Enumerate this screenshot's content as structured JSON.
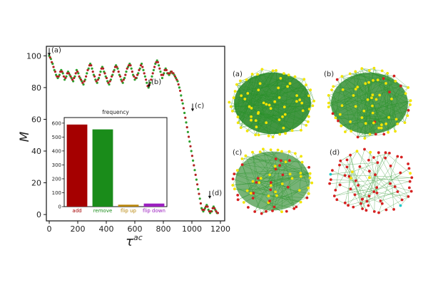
{
  "chart_data": [
    {
      "type": "scatter",
      "xlabel": "τ",
      "xlabel_sup": "ac",
      "ylabel": "M",
      "xlim": [
        -20,
        1230
      ],
      "ylim": [
        -4,
        106
      ],
      "xticks": [
        0,
        200,
        400,
        600,
        800,
        1000,
        1200
      ],
      "yticks": [
        0,
        20,
        40,
        60,
        80,
        100
      ],
      "grid": false,
      "series": [
        {
          "color": "#2ca02c",
          "x": [
            0,
            12,
            24,
            36,
            48,
            60,
            72,
            84,
            96,
            108,
            120,
            132,
            144,
            156,
            168,
            180,
            192,
            204,
            216,
            228,
            240,
            252,
            264,
            276,
            288,
            300,
            312,
            324,
            336,
            348,
            360,
            372,
            384,
            396,
            408,
            420,
            432,
            444,
            456,
            468,
            480,
            492,
            504,
            516,
            528,
            540,
            552,
            564,
            576,
            588,
            600,
            612,
            624,
            636,
            648,
            660,
            672,
            684,
            696,
            708,
            720,
            732,
            744,
            756,
            768,
            780,
            792,
            804,
            816,
            828,
            840,
            852,
            864,
            876,
            888,
            900,
            912,
            924,
            936,
            948,
            960,
            972,
            984,
            996,
            1008,
            1020,
            1032,
            1044,
            1056,
            1068,
            1080,
            1092,
            1104,
            1116,
            1128,
            1140,
            1152,
            1164,
            1176
          ],
          "y": [
            100,
            98,
            95,
            91,
            88,
            86,
            88,
            91,
            89,
            85,
            87,
            90,
            88,
            86,
            84,
            87,
            91,
            89,
            86,
            84,
            82,
            85,
            89,
            92,
            95,
            92,
            88,
            85,
            83,
            86,
            90,
            93,
            90,
            87,
            84,
            82,
            85,
            88,
            91,
            94,
            92,
            88,
            85,
            83,
            86,
            90,
            93,
            95,
            92,
            88,
            85,
            86,
            89,
            92,
            95,
            91,
            87,
            83,
            80,
            83,
            87,
            91,
            95,
            97,
            94,
            90,
            86,
            89,
            92,
            89,
            88,
            90,
            89,
            88,
            86,
            84,
            80,
            75,
            70,
            64,
            58,
            52,
            46,
            40,
            34,
            28,
            22,
            16,
            10,
            4,
            2,
            4,
            6,
            3,
            1,
            2,
            5,
            3,
            1
          ]
        },
        {
          "color": "#b22222",
          "x": [
            6,
            18,
            30,
            42,
            54,
            66,
            78,
            90,
            102,
            114,
            126,
            138,
            150,
            162,
            174,
            186,
            198,
            210,
            222,
            234,
            246,
            258,
            270,
            282,
            294,
            306,
            318,
            330,
            342,
            354,
            366,
            378,
            390,
            402,
            414,
            426,
            438,
            450,
            462,
            474,
            486,
            498,
            510,
            522,
            534,
            546,
            558,
            570,
            582,
            594,
            606,
            618,
            630,
            642,
            654,
            666,
            678,
            690,
            702,
            714,
            726,
            738,
            750,
            762,
            774,
            786,
            798,
            810,
            822,
            834,
            846,
            858,
            870,
            882,
            894,
            906,
            918,
            930,
            942,
            954,
            966,
            978,
            990,
            1002,
            1014,
            1026,
            1038,
            1050,
            1062,
            1074,
            1086,
            1098,
            1110,
            1122,
            1134,
            1146,
            1158,
            1170,
            1182
          ],
          "y": [
            99,
            96,
            93,
            90,
            87,
            87,
            90,
            90,
            87,
            86,
            89,
            89,
            87,
            85,
            86,
            89,
            90,
            87,
            85,
            83,
            84,
            87,
            91,
            94,
            94,
            90,
            87,
            84,
            85,
            88,
            92,
            92,
            89,
            86,
            83,
            84,
            87,
            90,
            93,
            93,
            90,
            87,
            84,
            85,
            88,
            92,
            94,
            94,
            90,
            87,
            86,
            88,
            91,
            94,
            93,
            89,
            85,
            81,
            82,
            85,
            89,
            93,
            96,
            96,
            92,
            88,
            88,
            91,
            91,
            89,
            89,
            90,
            89,
            87,
            85,
            82,
            78,
            72,
            67,
            61,
            55,
            49,
            43,
            37,
            31,
            25,
            19,
            13,
            7,
            3,
            3,
            5,
            5,
            2,
            2,
            4,
            4,
            2,
            1
          ]
        }
      ],
      "annotations": [
        {
          "text": "(a)",
          "x": 0,
          "y": 100
        },
        {
          "text": "(b)",
          "x": 700,
          "y": 80
        },
        {
          "text": "(c)",
          "x": 1005,
          "y": 65
        },
        {
          "text": "(d)",
          "x": 1125,
          "y": 10
        }
      ]
    },
    {
      "type": "bar",
      "title": "frequency",
      "categories": [
        "add",
        "remove",
        "flip up",
        "flip down"
      ],
      "values": [
        590,
        555,
        14,
        22
      ],
      "colors": [
        "#a50000",
        "#1a8c1a",
        "#b8860b",
        "#9b1fbf"
      ],
      "ylim": [
        0,
        640
      ],
      "yticks": [
        0,
        100,
        200,
        300,
        400,
        500,
        600
      ]
    }
  ],
  "panels": [
    {
      "label": "(a)",
      "red_fraction": 0.0,
      "edge_density": "very-dense",
      "sample_shown": "A"
    },
    {
      "label": "(b)",
      "red_fraction": 0.18,
      "edge_density": "dense",
      "sample_shown": "B"
    },
    {
      "label": "(c)",
      "red_fraction": 0.45,
      "edge_density": "medium",
      "sample_shown": "C"
    },
    {
      "label": "(d)",
      "red_fraction": 0.85,
      "edge_density": "sparse",
      "sample_shown": "D"
    }
  ],
  "colors": {
    "node_yellow": "#f2e400",
    "node_red": "#d62020",
    "node_cyan": "#20c8c8",
    "edge_green": "#1f8f1f",
    "blob_green": "#2e8b2e"
  }
}
